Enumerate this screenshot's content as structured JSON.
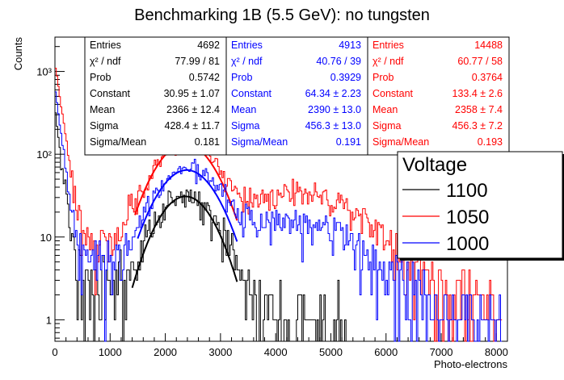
{
  "chart_data": {
    "type": "line",
    "title": "Benchmarking 1B (5.5 GeV): no tungsten",
    "xlabel": "Photo-electrons",
    "ylabel": "Counts",
    "xlim": [
      0,
      8200
    ],
    "ylim": [
      0.55,
      2600
    ],
    "yscale": "log",
    "grid": false,
    "x_ticks": [
      0,
      1000,
      2000,
      3000,
      4000,
      5000,
      6000,
      7000,
      8000
    ],
    "x_tick_labels": [
      "0",
      "1000",
      "2000",
      "3000",
      "4000",
      "5000",
      "6000",
      "7000",
      "8000"
    ],
    "y_ticks": [
      1,
      10,
      100,
      1000
    ],
    "y_tick_labels": [
      "1",
      "10",
      "10²",
      "10³"
    ],
    "legend": {
      "title": "Voltage",
      "placement": "right",
      "entries": [
        {
          "label": "1100",
          "color": "#000000"
        },
        {
          "label": "1050",
          "color": "#ff0000"
        },
        {
          "label": "1000",
          "color": "#0000ff"
        }
      ]
    },
    "series": [
      {
        "name": "1100",
        "color": "#000000",
        "histogram": {
          "pedestal_peak": 330,
          "pedestal_decay": 0.012,
          "gauss": {
            "constant": 30.95,
            "mean": 2366,
            "sigma": 428.4
          },
          "bump": {
            "amp": 0,
            "mean": 4500,
            "sigma": 700
          },
          "tail": 3,
          "end": 5300
        },
        "fit": {
          "constant": 30.95,
          "mean": 2366,
          "sigma": 428.4,
          "range": [
            1400,
            3300
          ]
        }
      },
      {
        "name": "1050",
        "color": "#ff0000",
        "histogram": {
          "pedestal_peak": 1300,
          "pedestal_decay": 0.011,
          "gauss": {
            "constant": 133.4,
            "mean": 2358,
            "sigma": 456.3
          },
          "bump": {
            "amp": 32,
            "mean": 4400,
            "sigma": 950
          },
          "tail": 9,
          "end": 8100
        },
        "fit": {
          "constant": 133.4,
          "mean": 2358,
          "sigma": 456.3,
          "range": [
            1450,
            3300
          ]
        }
      },
      {
        "name": "1000",
        "color": "#0000ff",
        "histogram": {
          "pedestal_peak": 650,
          "pedestal_decay": 0.012,
          "gauss": {
            "constant": 64.34,
            "mean": 2390,
            "sigma": 456.3
          },
          "bump": {
            "amp": 14,
            "mean": 4300,
            "sigma": 1000
          },
          "tail": 5,
          "end": 8100
        },
        "fit": {
          "constant": 64.34,
          "mean": 2390,
          "sigma": 456.3,
          "range": [
            1500,
            3300
          ]
        }
      }
    ],
    "stats_boxes": [
      {
        "color": "#000000",
        "rows": [
          {
            "label": "Entries",
            "value": "4692"
          },
          {
            "label": "χ² / ndf",
            "value": "77.99 / 81"
          },
          {
            "label": "Prob",
            "value": "0.5742"
          },
          {
            "label": "Constant",
            "value": "30.95 ± 1.07"
          },
          {
            "label": "Mean",
            "value": "2366 ± 12.4"
          },
          {
            "label": "Sigma",
            "value": "428.4 ± 11.7"
          },
          {
            "label": "Sigma/Mean",
            "value": "0.181"
          }
        ]
      },
      {
        "color": "#0000ff",
        "rows": [
          {
            "label": "Entries",
            "value": "4913"
          },
          {
            "label": "χ² / ndf",
            "value": "40.76 / 39"
          },
          {
            "label": "Prob",
            "value": "0.3929"
          },
          {
            "label": "Constant",
            "value": "64.34 ± 2.23"
          },
          {
            "label": "Mean",
            "value": "2390 ± 13.0"
          },
          {
            "label": "Sigma",
            "value": "456.3 ± 13.0"
          },
          {
            "label": "Sigma/Mean",
            "value": "0.191"
          }
        ]
      },
      {
        "color": "#ff0000",
        "rows": [
          {
            "label": "Entries",
            "value": "14488"
          },
          {
            "label": "χ² / ndf",
            "value": "60.77 / 58"
          },
          {
            "label": "Prob",
            "value": "0.3764"
          },
          {
            "label": "Constant",
            "value": "133.4 ± 2.6"
          },
          {
            "label": "Mean",
            "value": "2358 ± 7.4"
          },
          {
            "label": "Sigma",
            "value": "456.3 ± 7.2"
          },
          {
            "label": "Sigma/Mean",
            "value": "0.193"
          }
        ]
      }
    ]
  }
}
